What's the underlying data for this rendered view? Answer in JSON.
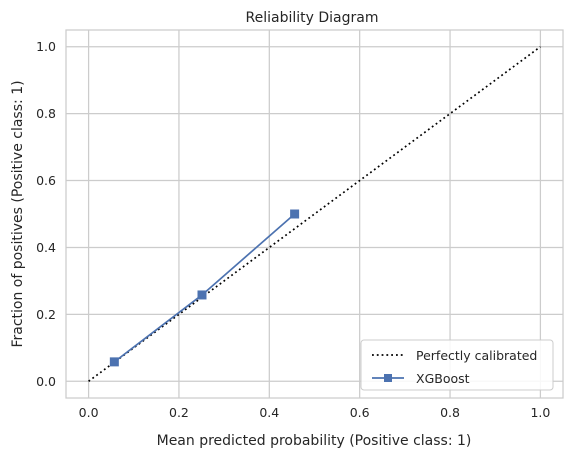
{
  "chart_data": {
    "type": "line",
    "title": "Reliability Diagram",
    "xlabel": "Mean predicted probability (Positive class: 1)",
    "ylabel": "Fraction of positives (Positive class: 1)",
    "xlim": [
      -0.05,
      1.05
    ],
    "ylim": [
      -0.05,
      1.05
    ],
    "xticks": [
      0.0,
      0.2,
      0.4,
      0.6,
      0.8,
      1.0
    ],
    "yticks": [
      0.0,
      0.2,
      0.4,
      0.6,
      0.8,
      1.0
    ],
    "xtick_labels": [
      "0.0",
      "0.2",
      "0.4",
      "0.6",
      "0.8",
      "1.0"
    ],
    "ytick_labels": [
      "0.0",
      "0.2",
      "0.4",
      "0.6",
      "0.8",
      "1.0"
    ],
    "grid": true,
    "legend_position": "lower-right",
    "series": [
      {
        "name": "Perfectly calibrated",
        "style": "dotted",
        "color": "#000000",
        "x": [
          0.0,
          1.0
        ],
        "y": [
          0.0,
          1.0
        ]
      },
      {
        "name": "XGBoost",
        "style": "solid",
        "marker": "square",
        "color": "#4c72b0",
        "x": [
          0.057,
          0.251,
          0.456
        ],
        "y": [
          0.058,
          0.258,
          0.5
        ]
      }
    ]
  }
}
